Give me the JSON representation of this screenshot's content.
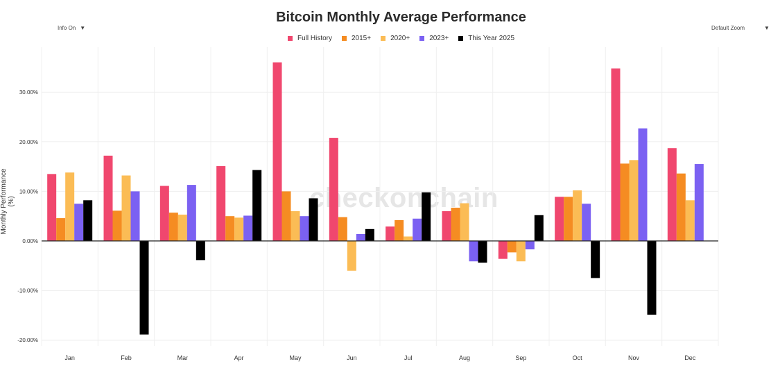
{
  "header": {
    "title": "Bitcoin Monthly Average Performance",
    "info_toggle": "Info On",
    "zoom_select": "Default Zoom",
    "watermark": "checkonchain"
  },
  "icons": {
    "dropdown": "caret-down-icon"
  },
  "chart_data": {
    "type": "bar",
    "title": "Bitcoin Monthly Average Performance",
    "xlabel": "",
    "ylabel": "Monthly Performance (%)",
    "ylim": [
      -21,
      38
    ],
    "yticks": [
      -20,
      -10,
      0,
      10,
      20,
      30
    ],
    "ytick_labels": [
      "-20.00%",
      "-10.00%",
      "0.00%",
      "10.00%",
      "20.00%",
      "30.00%"
    ],
    "grid": true,
    "legend_position": "top-center",
    "categories": [
      "Jan",
      "Feb",
      "Mar",
      "Apr",
      "May",
      "Jun",
      "Jul",
      "Aug",
      "Sep",
      "Oct",
      "Nov",
      "Dec"
    ],
    "series": [
      {
        "name": "Full History",
        "color": "#f0476e",
        "values": [
          13.5,
          17.2,
          11.1,
          15.1,
          36.0,
          20.8,
          2.9,
          6.0,
          -3.6,
          8.9,
          34.8,
          18.7
        ]
      },
      {
        "name": "2015+",
        "color": "#f58c22",
        "values": [
          4.6,
          6.1,
          5.7,
          5.0,
          10.0,
          4.8,
          4.2,
          6.7,
          -2.3,
          8.9,
          15.6,
          13.6
        ]
      },
      {
        "name": "2020+",
        "color": "#fbbc55",
        "values": [
          13.8,
          13.2,
          5.3,
          4.7,
          6.0,
          -6.0,
          0.9,
          7.6,
          -4.1,
          10.2,
          16.3,
          8.2
        ]
      },
      {
        "name": "2023+",
        "color": "#7b61f2",
        "values": [
          7.5,
          10.0,
          11.3,
          5.1,
          5.0,
          1.4,
          4.5,
          -4.1,
          -1.7,
          7.5,
          22.7,
          15.5
        ]
      },
      {
        "name": "This Year 2025",
        "color": "#000000",
        "values": [
          8.2,
          -18.9,
          -3.9,
          14.3,
          8.6,
          2.4,
          9.8,
          -4.4,
          5.2,
          -7.5,
          -14.9,
          null
        ]
      }
    ]
  }
}
